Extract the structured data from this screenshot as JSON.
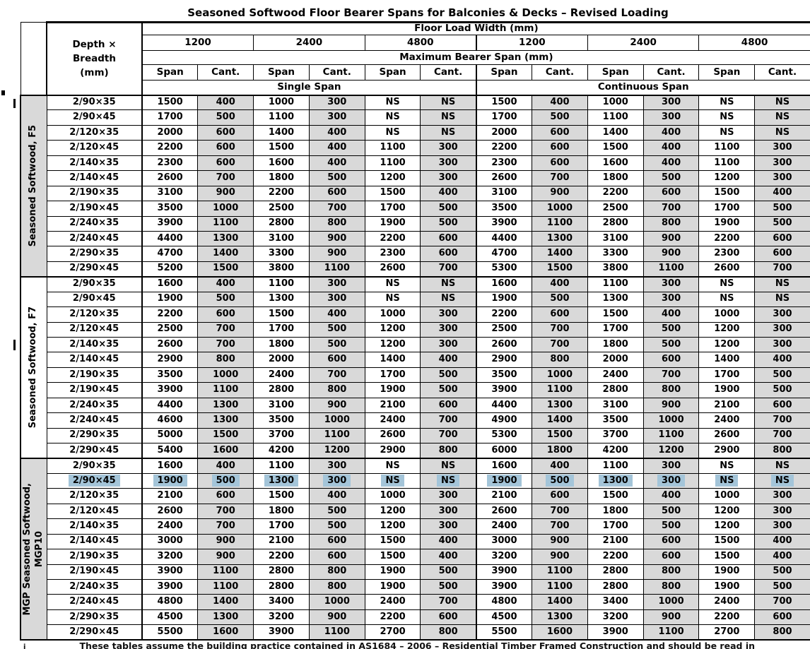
{
  "title": "Seasoned Softwood Floor Bearer Spans for Balconies & Decks – Revised Loading",
  "colors": {
    "shade": "#D9D9D9",
    "highlight": "#A4C5D9",
    "border": "#000000"
  },
  "header": {
    "floor_load_width": "Floor Load Width (mm)",
    "depth_breadth_lines": [
      "Depth ×",
      "Breadth",
      "(mm)"
    ],
    "flw_values": [
      "1200",
      "2400",
      "4800",
      "1200",
      "2400",
      "4800"
    ],
    "max_bearer_span": "Maximum Bearer Span (mm)",
    "span": "Span",
    "cant": "Cant.",
    "single_span": "Single Span",
    "continuous_span": "Continuous Span"
  },
  "sections": [
    {
      "label_lines": [
        "Seasoned Softwood, F5"
      ],
      "shaded": true,
      "highlighted_row": -1,
      "rows": [
        {
          "size": "2/90×35",
          "values": [
            "1500",
            "400",
            "1000",
            "300",
            "NS",
            "NS",
            "1500",
            "400",
            "1000",
            "300",
            "NS",
            "NS"
          ]
        },
        {
          "size": "2/90×45",
          "values": [
            "1700",
            "500",
            "1100",
            "300",
            "NS",
            "NS",
            "1700",
            "500",
            "1100",
            "300",
            "NS",
            "NS"
          ]
        },
        {
          "size": "2/120×35",
          "values": [
            "2000",
            "600",
            "1400",
            "400",
            "NS",
            "NS",
            "2000",
            "600",
            "1400",
            "400",
            "NS",
            "NS"
          ]
        },
        {
          "size": "2/120×45",
          "values": [
            "2200",
            "600",
            "1500",
            "400",
            "1100",
            "300",
            "2200",
            "600",
            "1500",
            "400",
            "1100",
            "300"
          ]
        },
        {
          "size": "2/140×35",
          "values": [
            "2300",
            "600",
            "1600",
            "400",
            "1100",
            "300",
            "2300",
            "600",
            "1600",
            "400",
            "1100",
            "300"
          ]
        },
        {
          "size": "2/140×45",
          "values": [
            "2600",
            "700",
            "1800",
            "500",
            "1200",
            "300",
            "2600",
            "700",
            "1800",
            "500",
            "1200",
            "300"
          ]
        },
        {
          "size": "2/190×35",
          "values": [
            "3100",
            "900",
            "2200",
            "600",
            "1500",
            "400",
            "3100",
            "900",
            "2200",
            "600",
            "1500",
            "400"
          ]
        },
        {
          "size": "2/190×45",
          "values": [
            "3500",
            "1000",
            "2500",
            "700",
            "1700",
            "500",
            "3500",
            "1000",
            "2500",
            "700",
            "1700",
            "500"
          ]
        },
        {
          "size": "2/240×35",
          "values": [
            "3900",
            "1100",
            "2800",
            "800",
            "1900",
            "500",
            "3900",
            "1100",
            "2800",
            "800",
            "1900",
            "500"
          ]
        },
        {
          "size": "2/240×45",
          "values": [
            "4400",
            "1300",
            "3100",
            "900",
            "2200",
            "600",
            "4400",
            "1300",
            "3100",
            "900",
            "2200",
            "600"
          ]
        },
        {
          "size": "2/290×35",
          "values": [
            "4700",
            "1400",
            "3300",
            "900",
            "2300",
            "600",
            "4700",
            "1400",
            "3300",
            "900",
            "2300",
            "600"
          ]
        },
        {
          "size": "2/290×45",
          "values": [
            "5200",
            "1500",
            "3800",
            "1100",
            "2600",
            "700",
            "5300",
            "1500",
            "3800",
            "1100",
            "2600",
            "700"
          ]
        }
      ]
    },
    {
      "label_lines": [
        "Seasoned Softwood, F7"
      ],
      "shaded": false,
      "highlighted_row": -1,
      "rows": [
        {
          "size": "2/90×35",
          "values": [
            "1600",
            "400",
            "1100",
            "300",
            "NS",
            "NS",
            "1600",
            "400",
            "1100",
            "300",
            "NS",
            "NS"
          ]
        },
        {
          "size": "2/90×45",
          "values": [
            "1900",
            "500",
            "1300",
            "300",
            "NS",
            "NS",
            "1900",
            "500",
            "1300",
            "300",
            "NS",
            "NS"
          ]
        },
        {
          "size": "2/120×35",
          "values": [
            "2200",
            "600",
            "1500",
            "400",
            "1000",
            "300",
            "2200",
            "600",
            "1500",
            "400",
            "1000",
            "300"
          ]
        },
        {
          "size": "2/120×45",
          "values": [
            "2500",
            "700",
            "1700",
            "500",
            "1200",
            "300",
            "2500",
            "700",
            "1700",
            "500",
            "1200",
            "300"
          ]
        },
        {
          "size": "2/140×35",
          "values": [
            "2600",
            "700",
            "1800",
            "500",
            "1200",
            "300",
            "2600",
            "700",
            "1800",
            "500",
            "1200",
            "300"
          ]
        },
        {
          "size": "2/140×45",
          "values": [
            "2900",
            "800",
            "2000",
            "600",
            "1400",
            "400",
            "2900",
            "800",
            "2000",
            "600",
            "1400",
            "400"
          ]
        },
        {
          "size": "2/190×35",
          "values": [
            "3500",
            "1000",
            "2400",
            "700",
            "1700",
            "500",
            "3500",
            "1000",
            "2400",
            "700",
            "1700",
            "500"
          ]
        },
        {
          "size": "2/190×45",
          "values": [
            "3900",
            "1100",
            "2800",
            "800",
            "1900",
            "500",
            "3900",
            "1100",
            "2800",
            "800",
            "1900",
            "500"
          ]
        },
        {
          "size": "2/240×35",
          "values": [
            "4400",
            "1300",
            "3100",
            "900",
            "2100",
            "600",
            "4400",
            "1300",
            "3100",
            "900",
            "2100",
            "600"
          ]
        },
        {
          "size": "2/240×45",
          "values": [
            "4600",
            "1300",
            "3500",
            "1000",
            "2400",
            "700",
            "4900",
            "1400",
            "3500",
            "1000",
            "2400",
            "700"
          ]
        },
        {
          "size": "2/290×35",
          "values": [
            "5000",
            "1500",
            "3700",
            "1100",
            "2600",
            "700",
            "5300",
            "1500",
            "3700",
            "1100",
            "2600",
            "700"
          ]
        },
        {
          "size": "2/290×45",
          "values": [
            "5400",
            "1600",
            "4200",
            "1200",
            "2900",
            "800",
            "6000",
            "1800",
            "4200",
            "1200",
            "2900",
            "800"
          ]
        }
      ]
    },
    {
      "label_lines": [
        "MGP Seasoned Softwood,",
        "MGP10"
      ],
      "shaded": true,
      "highlighted_row": 1,
      "rows": [
        {
          "size": "2/90×35",
          "values": [
            "1600",
            "400",
            "1100",
            "300",
            "NS",
            "NS",
            "1600",
            "400",
            "1100",
            "300",
            "NS",
            "NS"
          ]
        },
        {
          "size": "2/90×45",
          "values": [
            "1900",
            "500",
            "1300",
            "300",
            "NS",
            "NS",
            "1900",
            "500",
            "1300",
            "300",
            "NS",
            "NS"
          ]
        },
        {
          "size": "2/120×35",
          "values": [
            "2100",
            "600",
            "1500",
            "400",
            "1000",
            "300",
            "2100",
            "600",
            "1500",
            "400",
            "1000",
            "300"
          ]
        },
        {
          "size": "2/120×45",
          "values": [
            "2600",
            "700",
            "1800",
            "500",
            "1200",
            "300",
            "2600",
            "700",
            "1800",
            "500",
            "1200",
            "300"
          ]
        },
        {
          "size": "2/140×35",
          "values": [
            "2400",
            "700",
            "1700",
            "500",
            "1200",
            "300",
            "2400",
            "700",
            "1700",
            "500",
            "1200",
            "300"
          ]
        },
        {
          "size": "2/140×45",
          "values": [
            "3000",
            "900",
            "2100",
            "600",
            "1500",
            "400",
            "3000",
            "900",
            "2100",
            "600",
            "1500",
            "400"
          ]
        },
        {
          "size": "2/190×35",
          "values": [
            "3200",
            "900",
            "2200",
            "600",
            "1500",
            "400",
            "3200",
            "900",
            "2200",
            "600",
            "1500",
            "400"
          ]
        },
        {
          "size": "2/190×45",
          "values": [
            "3900",
            "1100",
            "2800",
            "800",
            "1900",
            "500",
            "3900",
            "1100",
            "2800",
            "800",
            "1900",
            "500"
          ]
        },
        {
          "size": "2/240×35",
          "values": [
            "3900",
            "1100",
            "2800",
            "800",
            "1900",
            "500",
            "3900",
            "1100",
            "2800",
            "800",
            "1900",
            "500"
          ]
        },
        {
          "size": "2/240×45",
          "values": [
            "4800",
            "1400",
            "3400",
            "1000",
            "2400",
            "700",
            "4800",
            "1400",
            "3400",
            "1000",
            "2400",
            "700"
          ]
        },
        {
          "size": "2/290×35",
          "values": [
            "4500",
            "1300",
            "3200",
            "900",
            "2200",
            "600",
            "4500",
            "1300",
            "3200",
            "900",
            "2200",
            "600"
          ]
        },
        {
          "size": "2/290×45",
          "values": [
            "5500",
            "1600",
            "3900",
            "1100",
            "2700",
            "800",
            "5500",
            "1600",
            "3900",
            "1100",
            "2700",
            "800"
          ]
        }
      ]
    }
  ],
  "footnote": {
    "marker": "i",
    "text": "These tables assume the building practice contained in AS1684 – 2006 – Residential Timber Framed Construction and should be read in"
  }
}
